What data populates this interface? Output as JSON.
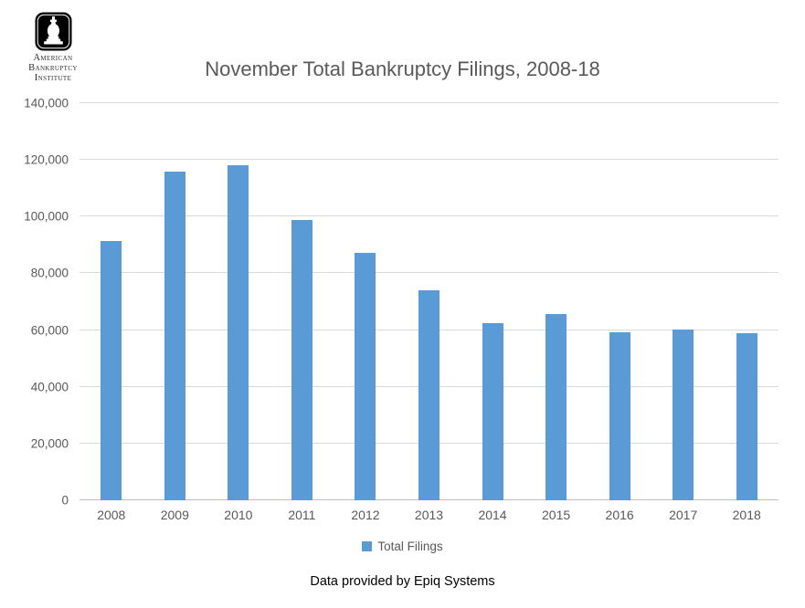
{
  "logo": {
    "line1": "American",
    "line2": "Bankruptcy",
    "line3": "Institute"
  },
  "chart_data": {
    "type": "bar",
    "title": "November Total Bankruptcy Filings, 2008-18",
    "categories": [
      "2008",
      "2009",
      "2010",
      "2011",
      "2012",
      "2013",
      "2014",
      "2015",
      "2016",
      "2017",
      "2018"
    ],
    "series": [
      {
        "name": "Total Filings",
        "values": [
          91500,
          115900,
          118200,
          98800,
          87200,
          74000,
          62600,
          65500,
          59200,
          60200,
          58900
        ]
      }
    ],
    "xlabel": "",
    "ylabel": "",
    "ylim": [
      0,
      140000
    ],
    "ytick_interval": 20000,
    "ytick_labels": [
      "0",
      "20,000",
      "40,000",
      "60,000",
      "80,000",
      "100,000",
      "120,000",
      "140,000"
    ],
    "grid": true,
    "legend_position": "bottom",
    "bar_color": "#5B9BD5"
  },
  "footer": {
    "text": "Data provided by Epiq Systems"
  },
  "colors": {
    "bar_blue": "#5B9BD5",
    "axis_text": "#595959",
    "gridline": "#D9D9D9",
    "title_text": "#595959",
    "footer_text": "#000000",
    "logo_black": "#000000"
  }
}
